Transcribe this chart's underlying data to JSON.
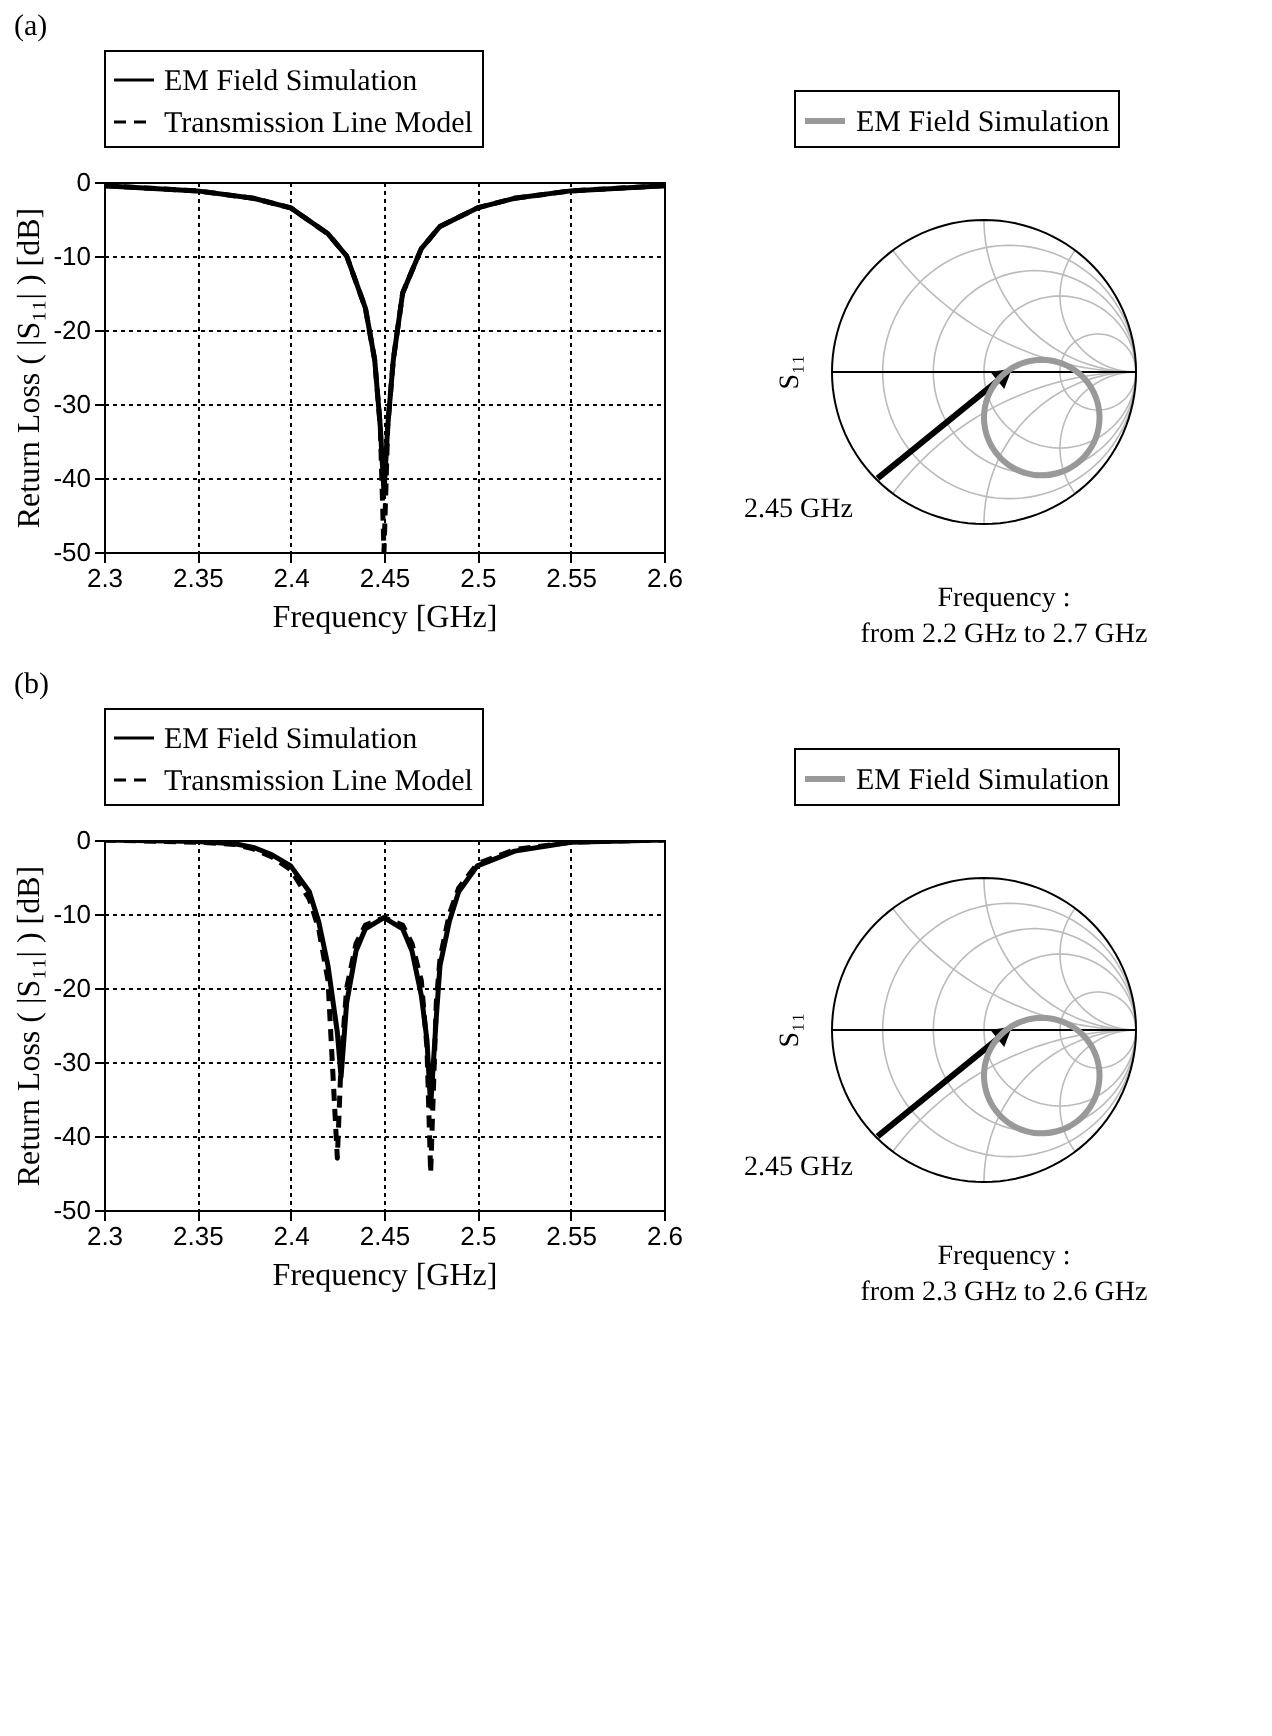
{
  "chart_data": [
    {
      "type": "line",
      "title": "(a)",
      "xlabel": "Frequency [GHz]",
      "ylabel": "Return Loss ( |S₁₁| ) [dB]",
      "xlim": [
        2.3,
        2.6
      ],
      "ylim": [
        -50,
        0
      ],
      "xticks": [
        2.3,
        2.35,
        2.4,
        2.45,
        2.5,
        2.55,
        2.6
      ],
      "yticks": [
        -50,
        -40,
        -30,
        -20,
        -10,
        0
      ],
      "grid": true,
      "legend": "top",
      "series": [
        {
          "name": "EM Field Simulation",
          "color": "#000000",
          "line_style": "solid",
          "x": [
            2.3,
            2.35,
            2.38,
            2.4,
            2.42,
            2.43,
            2.44,
            2.445,
            2.448,
            2.45,
            2.452,
            2.455,
            2.46,
            2.47,
            2.48,
            2.5,
            2.52,
            2.55,
            2.6
          ],
          "values": [
            -0.5,
            -1.2,
            -2.2,
            -3.5,
            -7,
            -10,
            -17,
            -24,
            -33,
            -42,
            -33,
            -24,
            -15,
            -9,
            -6,
            -3.5,
            -2.2,
            -1.2,
            -0.5
          ]
        },
        {
          "name": "Transmission Line Model",
          "color": "#000000",
          "line_style": "dashed",
          "x": [
            2.3,
            2.35,
            2.38,
            2.4,
            2.42,
            2.43,
            2.44,
            2.445,
            2.448,
            2.45,
            2.452,
            2.455,
            2.46,
            2.47,
            2.48,
            2.5,
            2.52,
            2.55,
            2.6
          ],
          "values": [
            -0.5,
            -1.2,
            -2.2,
            -3.5,
            -7,
            -10,
            -17,
            -24,
            -33,
            -50,
            -33,
            -24,
            -15,
            -9,
            -6,
            -3.5,
            -2.2,
            -1.2,
            -0.5
          ]
        }
      ]
    },
    {
      "type": "other",
      "ylabel": "S₁₁",
      "legend": "top",
      "series": [
        {
          "name": "EM Field Simulation",
          "color": "#999999"
        }
      ],
      "annotations": [
        "2.45 GHz",
        "Frequency :",
        "from 2.2 GHz to 2.7 GHz"
      ]
    },
    {
      "type": "line",
      "title": "(b)",
      "xlabel": "Frequency [GHz]",
      "ylabel": "Return Loss ( |S₁₁| ) [dB]",
      "xlim": [
        2.3,
        2.6
      ],
      "ylim": [
        -50,
        0
      ],
      "xticks": [
        2.3,
        2.35,
        2.4,
        2.45,
        2.5,
        2.55,
        2.6
      ],
      "yticks": [
        -50,
        -40,
        -30,
        -20,
        -10,
        0
      ],
      "grid": true,
      "legend": "top",
      "series": [
        {
          "name": "EM Field Simulation",
          "color": "#000000",
          "line_style": "solid",
          "x": [
            2.3,
            2.35,
            2.37,
            2.38,
            2.39,
            2.4,
            2.41,
            2.415,
            2.42,
            2.425,
            2.427,
            2.43,
            2.435,
            2.44,
            2.45,
            2.46,
            2.465,
            2.47,
            2.473,
            2.475,
            2.478,
            2.48,
            2.485,
            2.49,
            2.5,
            2.52,
            2.55,
            2.6
          ],
          "values": [
            0,
            -0.2,
            -0.5,
            -1,
            -2,
            -3.5,
            -7,
            -11,
            -17,
            -26,
            -32,
            -22,
            -15,
            -12,
            -10.5,
            -12,
            -15,
            -21,
            -27,
            -36,
            -24,
            -17,
            -11,
            -7,
            -3.5,
            -1.5,
            -0.3,
            0
          ]
        },
        {
          "name": "Transmission Line Model",
          "color": "#000000",
          "line_style": "dashed",
          "x": [
            2.3,
            2.35,
            2.37,
            2.38,
            2.39,
            2.4,
            2.41,
            2.415,
            2.42,
            2.425,
            2.427,
            2.43,
            2.435,
            2.44,
            2.45,
            2.46,
            2.465,
            2.47,
            2.473,
            2.475,
            2.478,
            2.48,
            2.485,
            2.49,
            2.5,
            2.52,
            2.55,
            2.6
          ],
          "values": [
            0,
            -0.3,
            -0.6,
            -1.2,
            -2.3,
            -4,
            -8,
            -12,
            -19,
            -43,
            -30,
            -20,
            -14,
            -11.5,
            -10.5,
            -11.5,
            -14,
            -19,
            -28,
            -45,
            -22,
            -16,
            -10,
            -6.5,
            -3.2,
            -1.3,
            -0.3,
            0
          ]
        }
      ]
    },
    {
      "type": "other",
      "ylabel": "S₁₁",
      "legend": "top",
      "series": [
        {
          "name": "EM Field Simulation",
          "color": "#999999"
        }
      ],
      "annotations": [
        "2.45 GHz",
        "Frequency :",
        "from 2.3 GHz to 2.6 GHz"
      ]
    }
  ]
}
